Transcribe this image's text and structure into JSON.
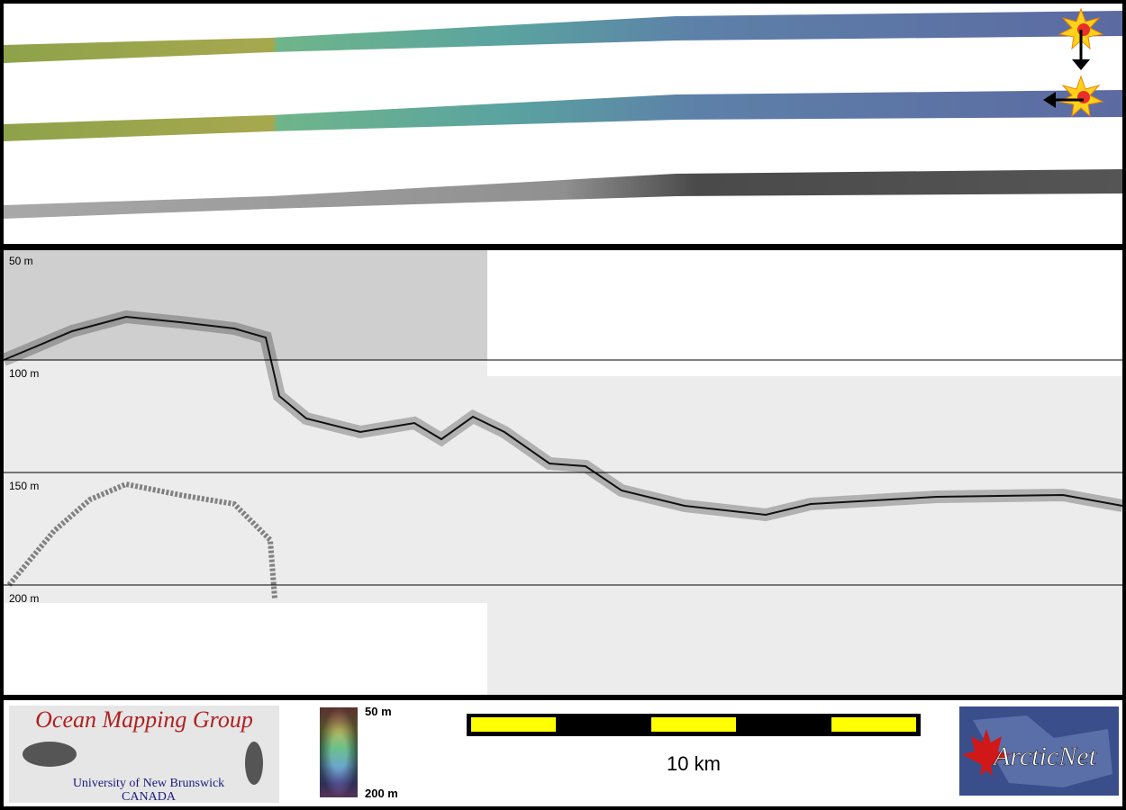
{
  "profile": {
    "depth_labels": [
      "50 m",
      "100 m",
      "150 m",
      "200 m"
    ]
  },
  "legend": {
    "color_scale": {
      "top": "50 m",
      "bottom": "200 m"
    },
    "scale_bar": "10 km"
  },
  "logos": {
    "omg": {
      "title": "Ocean Mapping Group",
      "university": "University of New Brunswick",
      "country": "CANADA"
    },
    "arcticnet": "ArcticNet"
  }
}
